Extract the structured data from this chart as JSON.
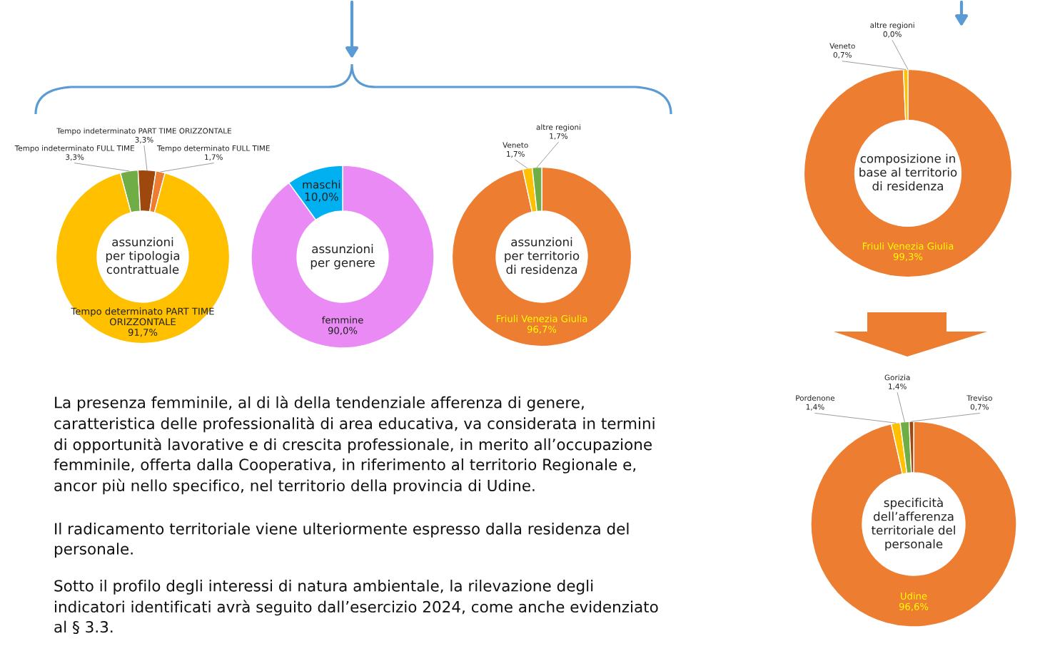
{
  "chart_data": [
    {
      "type": "donut",
      "title": "assunzioni\nper tipologia\ncontrattuale",
      "categories": [
        "Tempo indeterminato FULL TIME",
        "Tempo indeterminato PART TIME ORIZZONTALE",
        "Tempo determinato FULL TIME",
        "Tempo determinato PART TIME\nORIZZONTALE"
      ],
      "values": [
        3.3,
        3.3,
        1.7,
        91.7
      ],
      "colors": [
        "#70ad47",
        "#9e480e",
        "#ed7d31",
        "#ffc000"
      ],
      "value_labels": [
        "3,3%",
        "3,3%",
        "1,7%",
        "91,7%"
      ],
      "legend": false
    },
    {
      "type": "donut",
      "title": "assunzioni\nper genere",
      "categories": [
        "femmine",
        "maschi"
      ],
      "values": [
        90.0,
        10.0
      ],
      "colors": [
        "#e98af5",
        "#00b0f0"
      ],
      "value_labels": [
        "90,0%",
        "10,0%"
      ],
      "legend": false
    },
    {
      "type": "donut",
      "title": "assunzioni\nper territorio\ndi residenza",
      "categories": [
        "Friuli Venezia Giulia",
        "Veneto",
        "altre regioni"
      ],
      "values": [
        96.7,
        1.7,
        1.7
      ],
      "colors": [
        "#ed7d31",
        "#ffc000",
        "#70ad47"
      ],
      "value_labels": [
        "96,7%",
        "1,7%",
        "1,7%"
      ],
      "legend": false
    },
    {
      "type": "donut",
      "title": "composizione in\nbase al territorio\ndi residenza",
      "categories": [
        "Friuli Venezia Giulia",
        "Veneto",
        "altre regioni"
      ],
      "values": [
        99.3,
        0.7,
        0.0
      ],
      "colors": [
        "#ed7d31",
        "#ffc000",
        "#70ad47"
      ],
      "value_labels": [
        "99,3%",
        "0,7%",
        "0,0%"
      ],
      "legend": false
    },
    {
      "type": "donut",
      "title": "specificità\ndell’afferenza\nterritoriale del\npersonale",
      "categories": [
        "Udine",
        "Pordenone",
        "Gorizia",
        "Treviso"
      ],
      "values": [
        96.6,
        1.4,
        1.4,
        0.7
      ],
      "colors": [
        "#ed7d31",
        "#ffc000",
        "#70ad47",
        "#9e480e"
      ],
      "value_labels": [
        "96,6%",
        "1,4%",
        "1,4%",
        "0,7%"
      ],
      "legend": false
    },
    {
      "type": "other",
      "annotations": [
        "La presenza femminile, al di là della tendenziale afferenza di genere,\ncaratteristica delle professionalità di area educativa, va considerata in termini\ndi opportunità lavorative e di crescita professionale, in merito all’occupazione\nfemminile, offerta dalla Cooperativa, in riferimento al territorio Regionale e,\nancor più nello specifico, nel territorio della provincia di Udine.",
        "Il radicamento territoriale viene ulteriormente espresso dalla residenza del\npersonale.",
        "Sotto il profilo degli interessi di natura ambientale, la rilevazione degli\nindicatori identificati avrà seguito dall’esercizio 2024, come anche evidenziato\nal § 3.3."
      ]
    }
  ]
}
